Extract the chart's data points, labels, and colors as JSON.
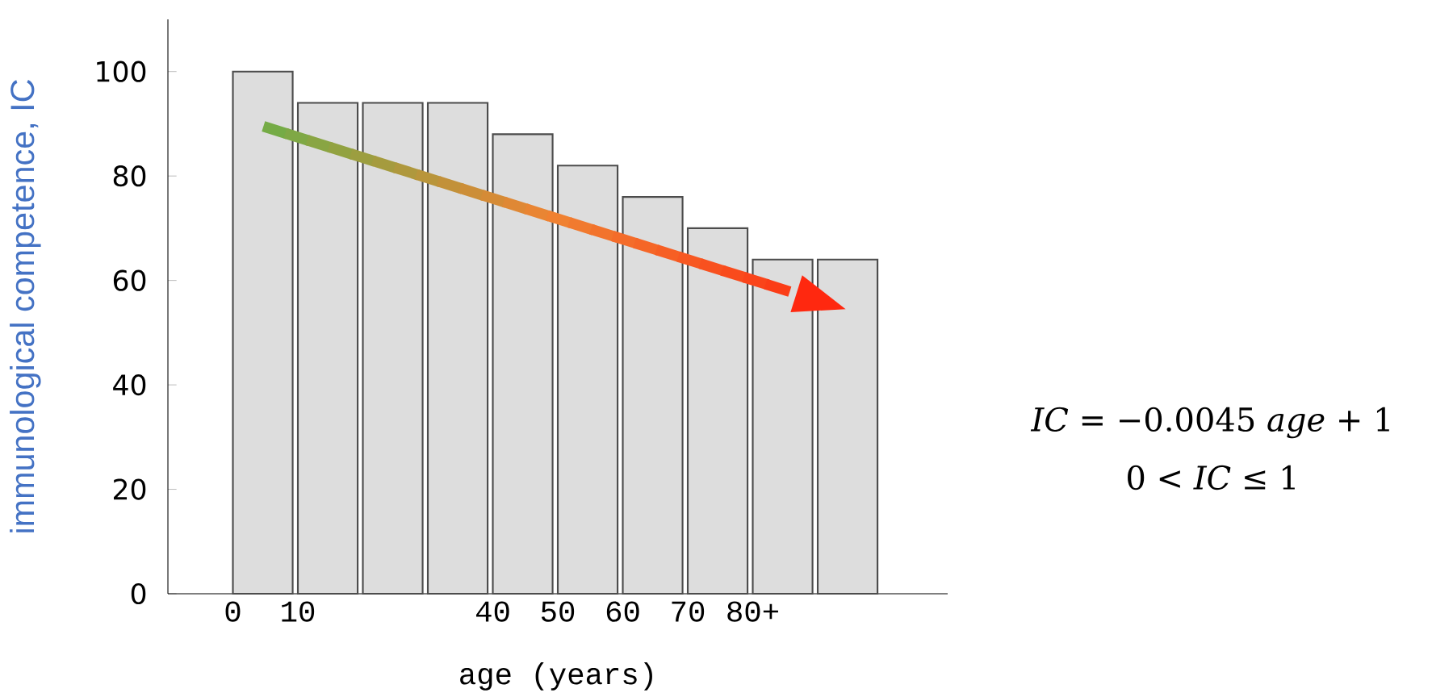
{
  "chart_data": {
    "type": "histogram",
    "xlabel": "age (years)",
    "ylabel": "immunological competence, IC",
    "bins": [
      0,
      10,
      20,
      30,
      40,
      50,
      60,
      70,
      80,
      90,
      100
    ],
    "values": [
      100,
      94,
      94,
      94,
      88,
      82,
      76,
      70,
      64,
      64
    ],
    "color": "#dddddd",
    "xlim": [
      -10,
      110
    ],
    "ylim": [
      0,
      110
    ],
    "xticks": [
      0,
      10,
      40,
      50,
      60,
      70,
      {
        "value": 80,
        "label": "80+"
      }
    ],
    "yticks": [
      0,
      20,
      40,
      60,
      80,
      100
    ],
    "annotations": [
      "*IC* = −0.0045 *age* + 1",
      "0 < *IC* ≤ 1"
    ]
  }
}
